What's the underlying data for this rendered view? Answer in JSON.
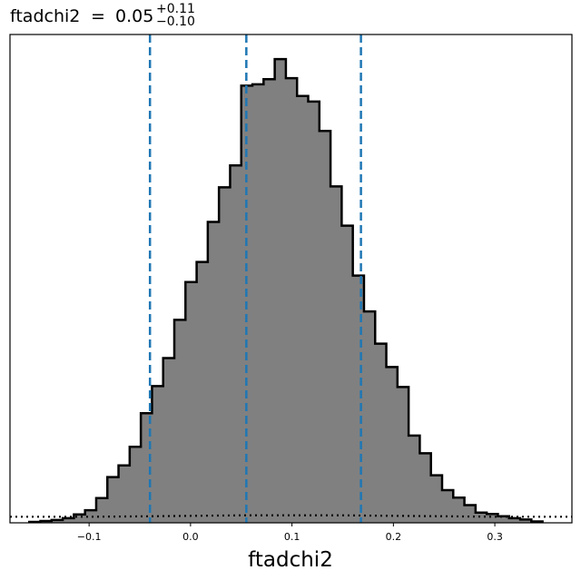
{
  "chart_data": {
    "type": "histogram",
    "title": {
      "variable": "ftadchi2",
      "equals": "=",
      "median": "0.05",
      "upper_err": "+0.11",
      "lower_err": "−0.10"
    },
    "xlabel": "ftadchi2",
    "ylabel": "",
    "xlim": [
      -0.178,
      0.376
    ],
    "ylim": [
      0,
      1
    ],
    "y_axis_ticks_shown": false,
    "grid": false,
    "x_ticks": [
      {
        "value": -0.1,
        "label": "−0.1"
      },
      {
        "value": 0.0,
        "label": "0.0"
      },
      {
        "value": 0.1,
        "label": "0.1"
      },
      {
        "value": 0.2,
        "label": "0.2"
      },
      {
        "value": 0.3,
        "label": "0.3"
      }
    ],
    "bin_edges": [
      -0.159,
      -0.148,
      -0.137,
      -0.126,
      -0.115,
      -0.104,
      -0.093,
      -0.082,
      -0.071,
      -0.06,
      -0.049,
      -0.038,
      -0.027,
      -0.016,
      -0.005,
      0.006,
      0.017,
      0.028,
      0.039,
      0.05,
      0.061,
      0.072,
      0.083,
      0.094,
      0.105,
      0.116,
      0.127,
      0.138,
      0.149,
      0.16,
      0.171,
      0.182,
      0.193,
      0.204,
      0.215,
      0.226,
      0.237,
      0.248,
      0.259,
      0.27,
      0.281,
      0.292,
      0.303,
      0.314,
      0.325,
      0.336,
      0.347
    ],
    "counts": [
      0.002,
      0.004,
      0.006,
      0.01,
      0.018,
      0.027,
      0.053,
      0.098,
      0.123,
      0.163,
      0.235,
      0.293,
      0.353,
      0.435,
      0.516,
      0.559,
      0.645,
      0.719,
      0.766,
      0.937,
      0.94,
      0.951,
      0.994,
      0.953,
      0.915,
      0.903,
      0.84,
      0.721,
      0.637,
      0.53,
      0.453,
      0.384,
      0.334,
      0.291,
      0.187,
      0.149,
      0.102,
      0.07,
      0.054,
      0.038,
      0.022,
      0.019,
      0.014,
      0.01,
      0.007,
      0.003
    ],
    "line_color": "#000000",
    "fill_color": "#808080",
    "quantile_lines": {
      "values": [
        -0.04,
        0.055,
        0.168
      ],
      "color": "#1f77b4",
      "style": "dashed"
    },
    "prior": {
      "style": "dotted",
      "color": "#000000",
      "x": [
        -0.178,
        -0.1,
        -0.04,
        0.0,
        0.05,
        0.1,
        0.15,
        0.2,
        0.25,
        0.3,
        0.376
      ],
      "y": [
        0.013,
        0.013,
        0.014,
        0.015,
        0.016,
        0.016,
        0.016,
        0.015,
        0.014,
        0.013,
        0.013
      ]
    }
  }
}
